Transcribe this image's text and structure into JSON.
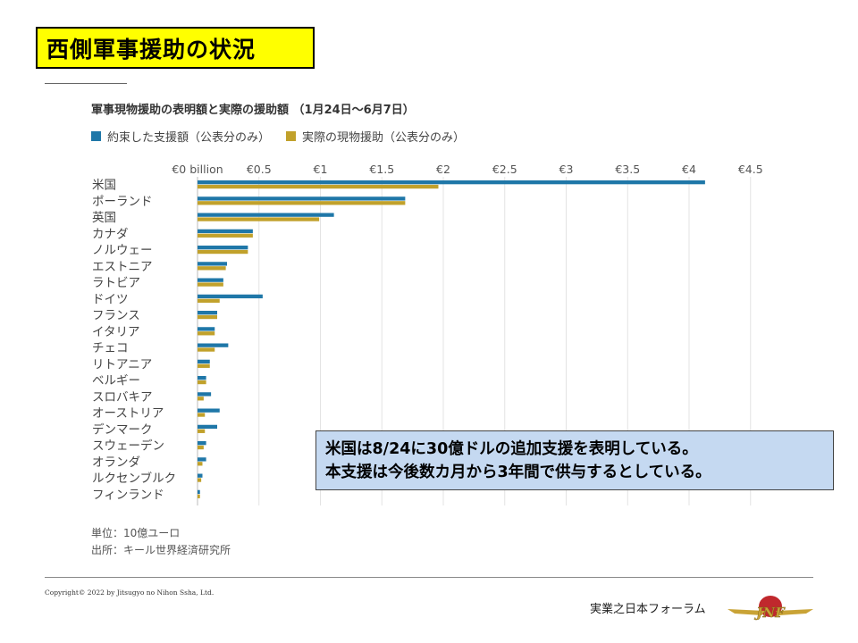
{
  "slide": {
    "title": "西側軍事援助の状況",
    "callout_lines": [
      "米国は8/24に30億ドルの追加支援を表明している。",
      "本支援は今後数カ月から3年間で供与するとしている。"
    ],
    "unit_note": "単位：10億ユーロ",
    "source_note": "出所：キール世界経済研究所",
    "copyright": "Copyright© 2022 by Jitsugyo no Nihon Ssha, Ltd.",
    "org_name": "実業之日本フォーラム",
    "logo_text": "JNF"
  },
  "colors": {
    "title_bg": "#ffff00",
    "pledged": "#1f77a8",
    "delivered": "#c1a12b",
    "callout_bg": "#c5d9f1",
    "logo_red": "#c0282d",
    "logo_gold": "#c9a336"
  },
  "chart_data": {
    "type": "bar",
    "orientation": "horizontal",
    "title": "軍事現物援助の表明額と実際の援助額 （1月24日～6月7日）",
    "legend_position": "top-left",
    "grid": true,
    "xlim": [
      0,
      4.5
    ],
    "x_ticks": [
      "€0 billion",
      "€0.5",
      "€1",
      "€1.5",
      "€2",
      "€2.5",
      "€3",
      "€3.5",
      "€4",
      "€4.5"
    ],
    "categories": [
      "米国",
      "ポーランド",
      "英国",
      "カナダ",
      "ノルウェー",
      "エストニア",
      "ラトビア",
      "ドイツ",
      "フランス",
      "イタリア",
      "チェコ",
      "リトアニア",
      "ベルギー",
      "スロバキア",
      "オーストリア",
      "デンマーク",
      "スウェーデン",
      "オランダ",
      "ルクセンブルク",
      "フィンランド"
    ],
    "series": [
      {
        "name": "約束した支援額（公表分のみ）",
        "color": "#1f77a8",
        "values": [
          4.13,
          1.69,
          1.11,
          0.45,
          0.41,
          0.24,
          0.21,
          0.53,
          0.16,
          0.14,
          0.25,
          0.1,
          0.07,
          0.11,
          0.18,
          0.16,
          0.07,
          0.07,
          0.04,
          0.02
        ]
      },
      {
        "name": "実際の現物援助（公表分のみ）",
        "color": "#c1a12b",
        "values": [
          1.96,
          1.69,
          0.99,
          0.45,
          0.41,
          0.23,
          0.21,
          0.18,
          0.16,
          0.14,
          0.14,
          0.1,
          0.07,
          0.05,
          0.06,
          0.06,
          0.05,
          0.04,
          0.03,
          0.02
        ]
      }
    ]
  }
}
